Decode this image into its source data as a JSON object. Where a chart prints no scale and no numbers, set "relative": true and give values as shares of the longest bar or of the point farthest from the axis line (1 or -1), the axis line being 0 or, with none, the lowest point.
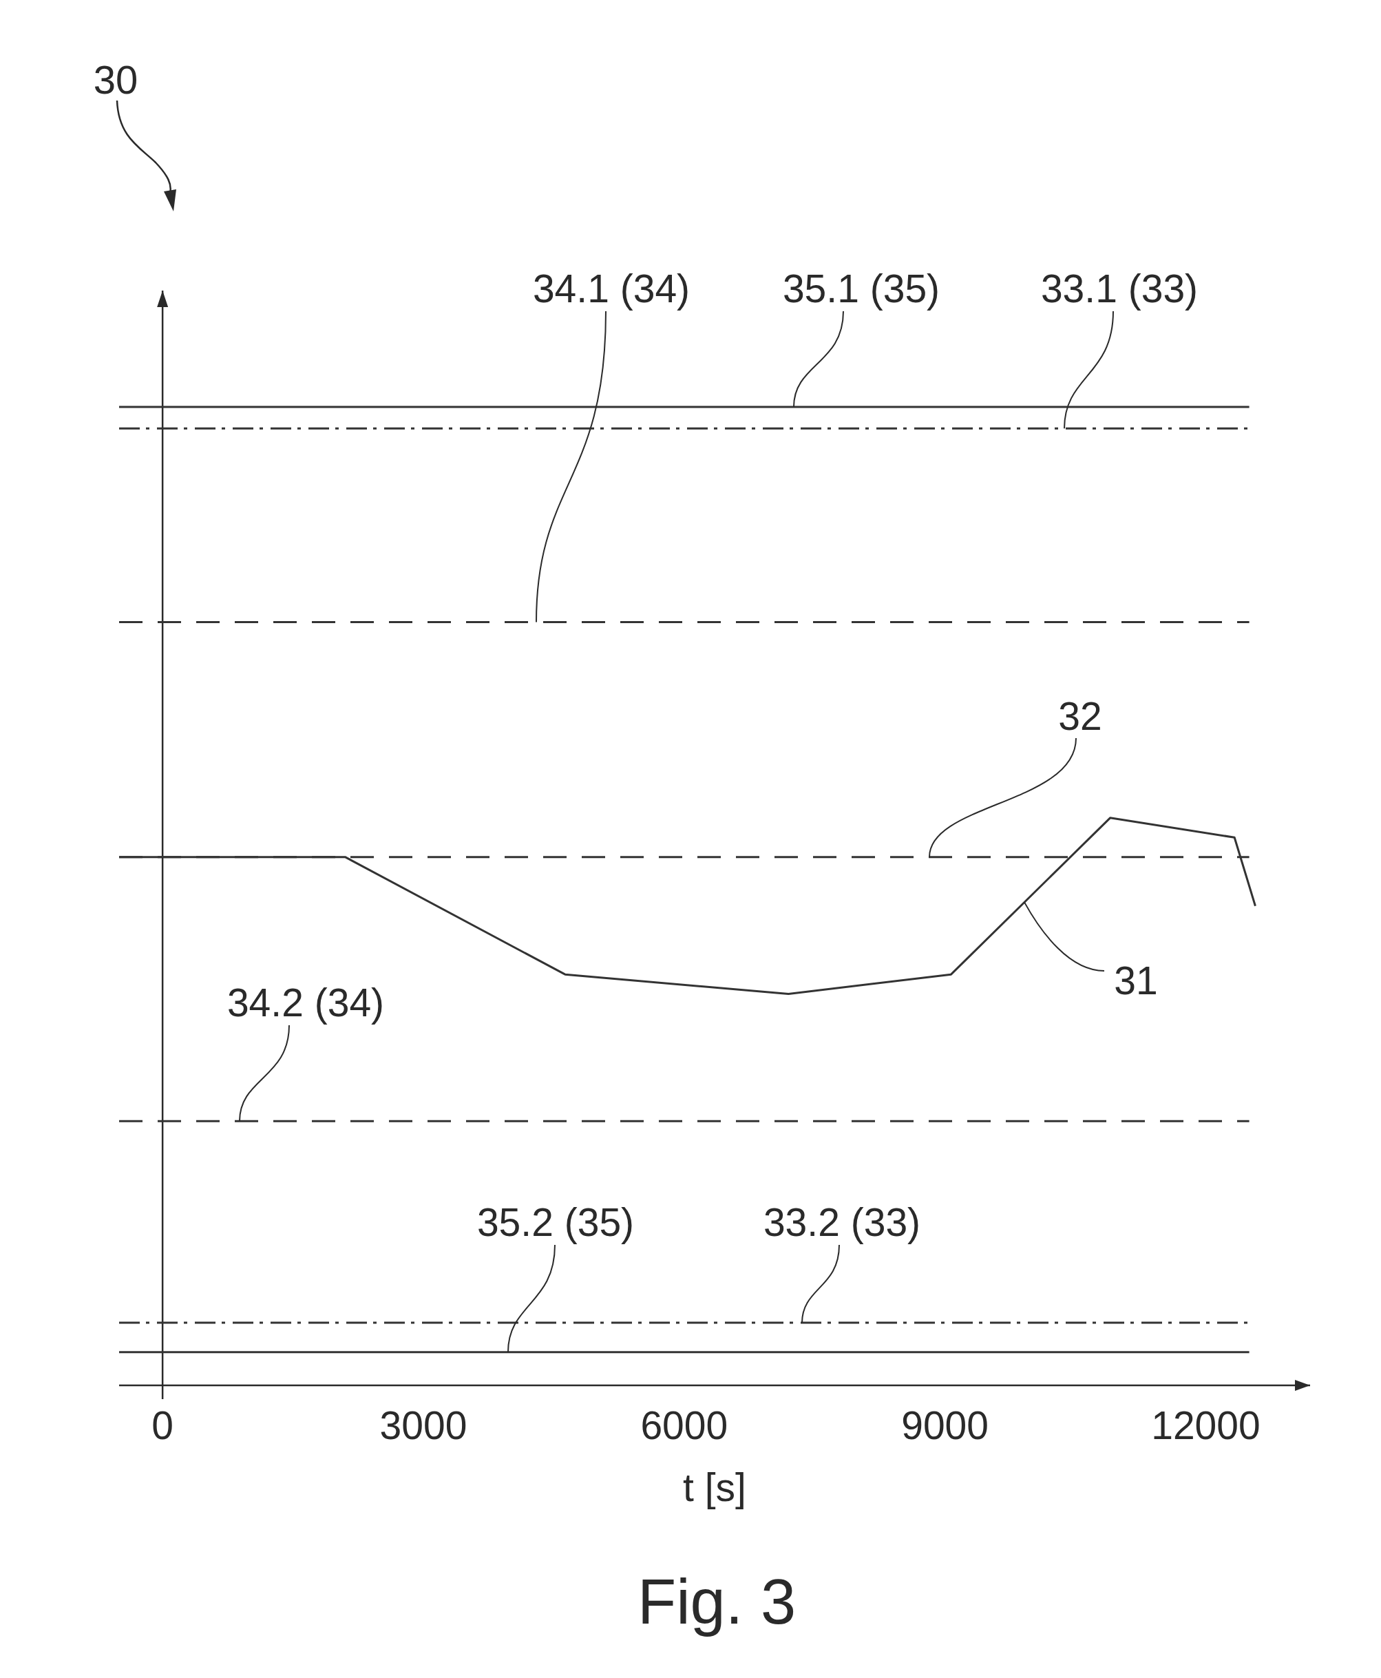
{
  "chart_data": {
    "type": "line",
    "xlabel": "t [s]",
    "annotations": [
      "30",
      "Fig. 3"
    ],
    "relative": true,
    "tick_labels": "x",
    "xlim": [
      -500,
      13200
    ],
    "xticks": [
      0,
      3000,
      6000,
      9000,
      12000
    ],
    "series": [
      {
        "name": "31",
        "color": "#333333",
        "line_style": "solid",
        "x": [
          -500,
          2100,
          4630,
          7200,
          9070,
          10900,
          12330,
          12570
        ],
        "values": [
          0.54,
          0.54,
          0.42,
          0.4,
          0.42,
          0.58,
          0.56,
          0.49
        ]
      },
      {
        "name": "32",
        "color": "#333333",
        "line_style": "dashed",
        "x": [
          -500,
          12500
        ],
        "values": [
          0.54,
          0.54
        ]
      },
      {
        "name": "33.1 (33)",
        "color": "#333333",
        "line_style": "dashdot",
        "x": [
          -500,
          12500
        ],
        "values": [
          0.978,
          0.978
        ]
      },
      {
        "name": "33.2 (33)",
        "color": "#333333",
        "line_style": "dashdot",
        "x": [
          -500,
          12500
        ],
        "values": [
          0.064,
          0.064
        ]
      },
      {
        "name": "34.1 (34)",
        "color": "#333333",
        "line_style": "dashed",
        "x": [
          -500,
          12500
        ],
        "values": [
          0.78,
          0.78
        ]
      },
      {
        "name": "34.2 (34)",
        "color": "#333333",
        "line_style": "dashed",
        "x": [
          -500,
          12500
        ],
        "values": [
          0.27,
          0.27
        ]
      },
      {
        "name": "35.1 (35)",
        "color": "#333333",
        "line_style": "solid",
        "x": [
          -500,
          12500
        ],
        "values": [
          1.0,
          1.0
        ]
      },
      {
        "name": "35.2 (35)",
        "color": "#333333",
        "line_style": "solid",
        "x": [
          -500,
          12500
        ],
        "values": [
          0.034,
          0.034
        ]
      }
    ]
  }
}
